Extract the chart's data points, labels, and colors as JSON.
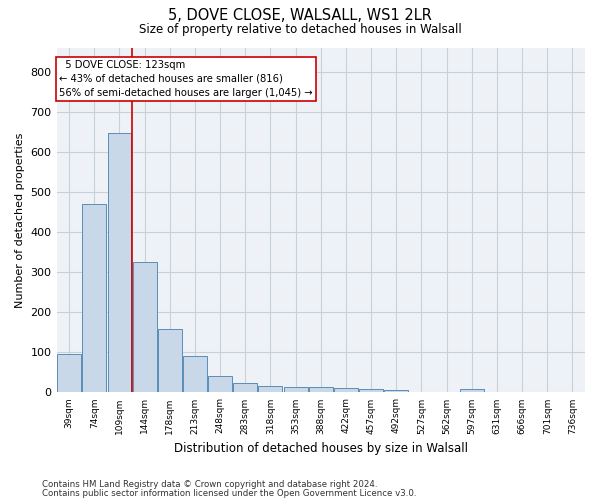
{
  "title1": "5, DOVE CLOSE, WALSALL, WS1 2LR",
  "title2": "Size of property relative to detached houses in Walsall",
  "xlabel": "Distribution of detached houses by size in Walsall",
  "ylabel": "Number of detached properties",
  "categories": [
    "39sqm",
    "74sqm",
    "109sqm",
    "144sqm",
    "178sqm",
    "213sqm",
    "248sqm",
    "283sqm",
    "318sqm",
    "353sqm",
    "388sqm",
    "422sqm",
    "457sqm",
    "492sqm",
    "527sqm",
    "562sqm",
    "597sqm",
    "631sqm",
    "666sqm",
    "701sqm",
    "736sqm"
  ],
  "values": [
    95,
    470,
    648,
    325,
    158,
    92,
    40,
    23,
    15,
    13,
    14,
    12,
    8,
    5,
    0,
    0,
    8,
    0,
    0,
    0,
    0
  ],
  "bar_color": "#c8d8e8",
  "bar_edge_color": "#5b8db8",
  "property_line_x": 2.5,
  "property_line_color": "#cc0000",
  "annotation_text": "  5 DOVE CLOSE: 123sqm\n← 43% of detached houses are smaller (816)\n56% of semi-detached houses are larger (1,045) →",
  "annotation_box_color": "#cc0000",
  "ylim": [
    0,
    860
  ],
  "yticks": [
    0,
    100,
    200,
    300,
    400,
    500,
    600,
    700,
    800
  ],
  "grid_color": "#c8d0d8",
  "bg_color": "#eef2f6",
  "footnote_line1": "Contains HM Land Registry data © Crown copyright and database right 2024.",
  "footnote_line2": "Contains public sector information licensed under the Open Government Licence v3.0."
}
